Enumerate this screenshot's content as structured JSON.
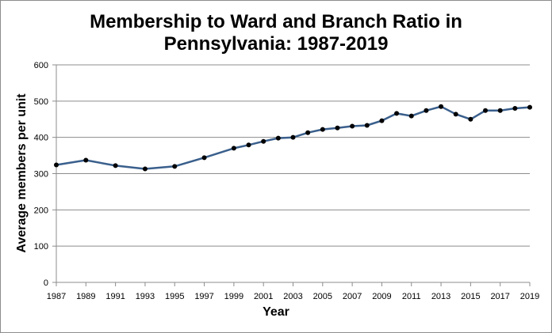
{
  "chart_data": {
    "type": "line",
    "title_lines": [
      "Membership to Ward and Branch Ratio in",
      "Pennsylvania: 1987-2019"
    ],
    "xlabel": "Year",
    "ylabel": "Average members per unit",
    "xlim": [
      1987,
      2019
    ],
    "ylim": [
      0,
      600
    ],
    "y_ticks": [
      0,
      100,
      200,
      300,
      400,
      500,
      600
    ],
    "x_ticks": [
      1987,
      1989,
      1991,
      1993,
      1995,
      1997,
      1999,
      2001,
      2003,
      2005,
      2007,
      2009,
      2011,
      2013,
      2015,
      2017,
      2019
    ],
    "grid": true,
    "legend": "none",
    "colors": {
      "line": "#3a5f8c",
      "marker": "#000000",
      "grid": "#8c8c8c"
    },
    "series": [
      {
        "x": [
          1987,
          1989,
          1991,
          1993,
          1995,
          1997,
          1999,
          2000,
          2001,
          2002,
          2003,
          2004,
          2005,
          2006,
          2007,
          2008,
          2009,
          2010,
          2011,
          2012,
          2013,
          2014,
          2015,
          2016,
          2017,
          2018,
          2019
        ],
        "values": [
          324,
          337,
          322,
          313,
          320,
          344,
          370,
          379,
          389,
          398,
          400,
          413,
          422,
          426,
          431,
          433,
          446,
          466,
          459,
          474,
          485,
          464,
          450,
          474,
          474,
          480,
          483
        ]
      }
    ]
  }
}
